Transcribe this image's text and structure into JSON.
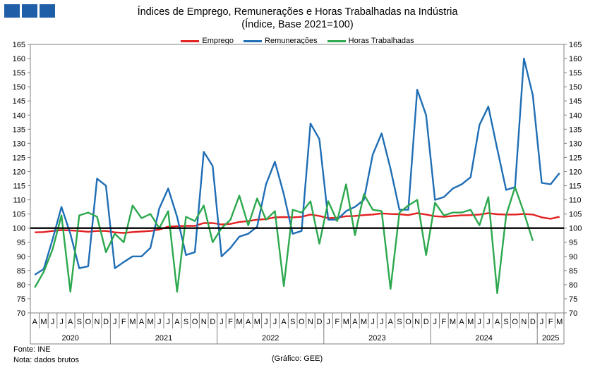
{
  "header": {
    "title": "Índices de Emprego, Remunerações e Horas Trabalhadas na Indústria",
    "subtitle": "(Índice, Base 2021=100)"
  },
  "footer": {
    "source": "Fonte: INE",
    "note": "Nota: dados brutos",
    "credit": "(Gráfico: GEE)"
  },
  "chart_data": {
    "type": "line",
    "title": "Índices de Emprego, Remunerações e Horas Trabalhadas na Indústria",
    "subtitle": "(Índice, Base 2021=100)",
    "ylim": [
      70,
      165
    ],
    "y_ticks": [
      70,
      75,
      80,
      85,
      90,
      95,
      100,
      105,
      110,
      115,
      120,
      125,
      130,
      135,
      140,
      145,
      150,
      155,
      160,
      165
    ],
    "reference_line": 100,
    "grid": false,
    "legend_position": "top",
    "month_labels": [
      "A",
      "M",
      "J",
      "J",
      "A",
      "S",
      "O",
      "N",
      "D",
      "J",
      "F",
      "M",
      "A",
      "M",
      "J",
      "J",
      "A",
      "S",
      "O",
      "N",
      "D",
      "J",
      "F",
      "M",
      "A",
      "M",
      "J",
      "J",
      "A",
      "S",
      "O",
      "N",
      "D",
      "J",
      "F",
      "M",
      "A",
      "M",
      "J",
      "J",
      "A",
      "S",
      "O",
      "N",
      "D",
      "J",
      "F",
      "M",
      "A",
      "M",
      "J",
      "J",
      "A",
      "S",
      "O",
      "N",
      "D",
      "J",
      "F",
      "M"
    ],
    "year_groups": [
      {
        "label": "2020",
        "count": 9
      },
      {
        "label": "2021",
        "count": 12
      },
      {
        "label": "2022",
        "count": 12
      },
      {
        "label": "2023",
        "count": 12
      },
      {
        "label": "2024",
        "count": 12
      },
      {
        "label": "2025",
        "count": 3
      }
    ],
    "series": [
      {
        "name": "Emprego",
        "color": "#e32020",
        "values": [
          98.5,
          98.6,
          99.0,
          99.3,
          99.2,
          99.0,
          98.7,
          99.0,
          99.0,
          98.5,
          98.3,
          98.6,
          98.8,
          99.0,
          99.5,
          100.5,
          100.7,
          100.8,
          100.8,
          101.8,
          101.8,
          101.3,
          101.5,
          102.2,
          102.5,
          103.0,
          103.2,
          103.8,
          103.9,
          103.8,
          104.0,
          104.8,
          104.3,
          103.5,
          103.7,
          104.2,
          104.3,
          104.6,
          104.8,
          105.2,
          105.0,
          104.9,
          104.6,
          105.3,
          104.8,
          104.2,
          104.0,
          104.3,
          104.5,
          104.6,
          104.8,
          105.3,
          104.9,
          104.8,
          104.8,
          105.0,
          104.8,
          103.8,
          103.3,
          104.0
        ]
      },
      {
        "name": "Remunerações",
        "color": "#1f6eb5",
        "values": [
          83.5,
          85.5,
          96.0,
          107.5,
          98.0,
          85.8,
          86.5,
          117.5,
          115.0,
          85.8,
          88.0,
          90.0,
          90.0,
          93.0,
          107.0,
          114.0,
          104.0,
          90.5,
          91.5,
          127.0,
          122.0,
          90.0,
          93.0,
          97.0,
          98.0,
          100.5,
          115.5,
          123.5,
          112.0,
          98.0,
          99.0,
          137.0,
          131.5,
          103.0,
          103.0,
          106.0,
          107.5,
          110.0,
          126.0,
          133.5,
          121.0,
          106.5,
          106.5,
          149.0,
          140.0,
          110.0,
          111.0,
          114.0,
          115.5,
          118.0,
          136.5,
          143.0,
          128.0,
          113.5,
          114.5,
          160.0,
          147.0,
          116.0,
          115.5,
          119.5
        ]
      },
      {
        "name": "Horas Trabalhadas",
        "color": "#2ca84e",
        "values": [
          79.0,
          84.5,
          92.5,
          104.5,
          77.5,
          104.5,
          105.5,
          104.0,
          91.5,
          98.0,
          95.0,
          108.0,
          103.5,
          105.0,
          100.0,
          106.0,
          77.5,
          104.0,
          102.5,
          108.0,
          95.0,
          100.0,
          103.0,
          111.5,
          101.0,
          110.5,
          103.0,
          106.0,
          79.5,
          106.5,
          105.5,
          109.5,
          94.5,
          109.5,
          102.5,
          115.5,
          97.5,
          112.0,
          106.5,
          106.0,
          78.5,
          105.5,
          108.0,
          110.0,
          90.5,
          109.0,
          104.5,
          105.5,
          105.5,
          106.5,
          101.0,
          111.0,
          77.0,
          104.5,
          114.5,
          105.5,
          95.5
        ]
      }
    ]
  }
}
